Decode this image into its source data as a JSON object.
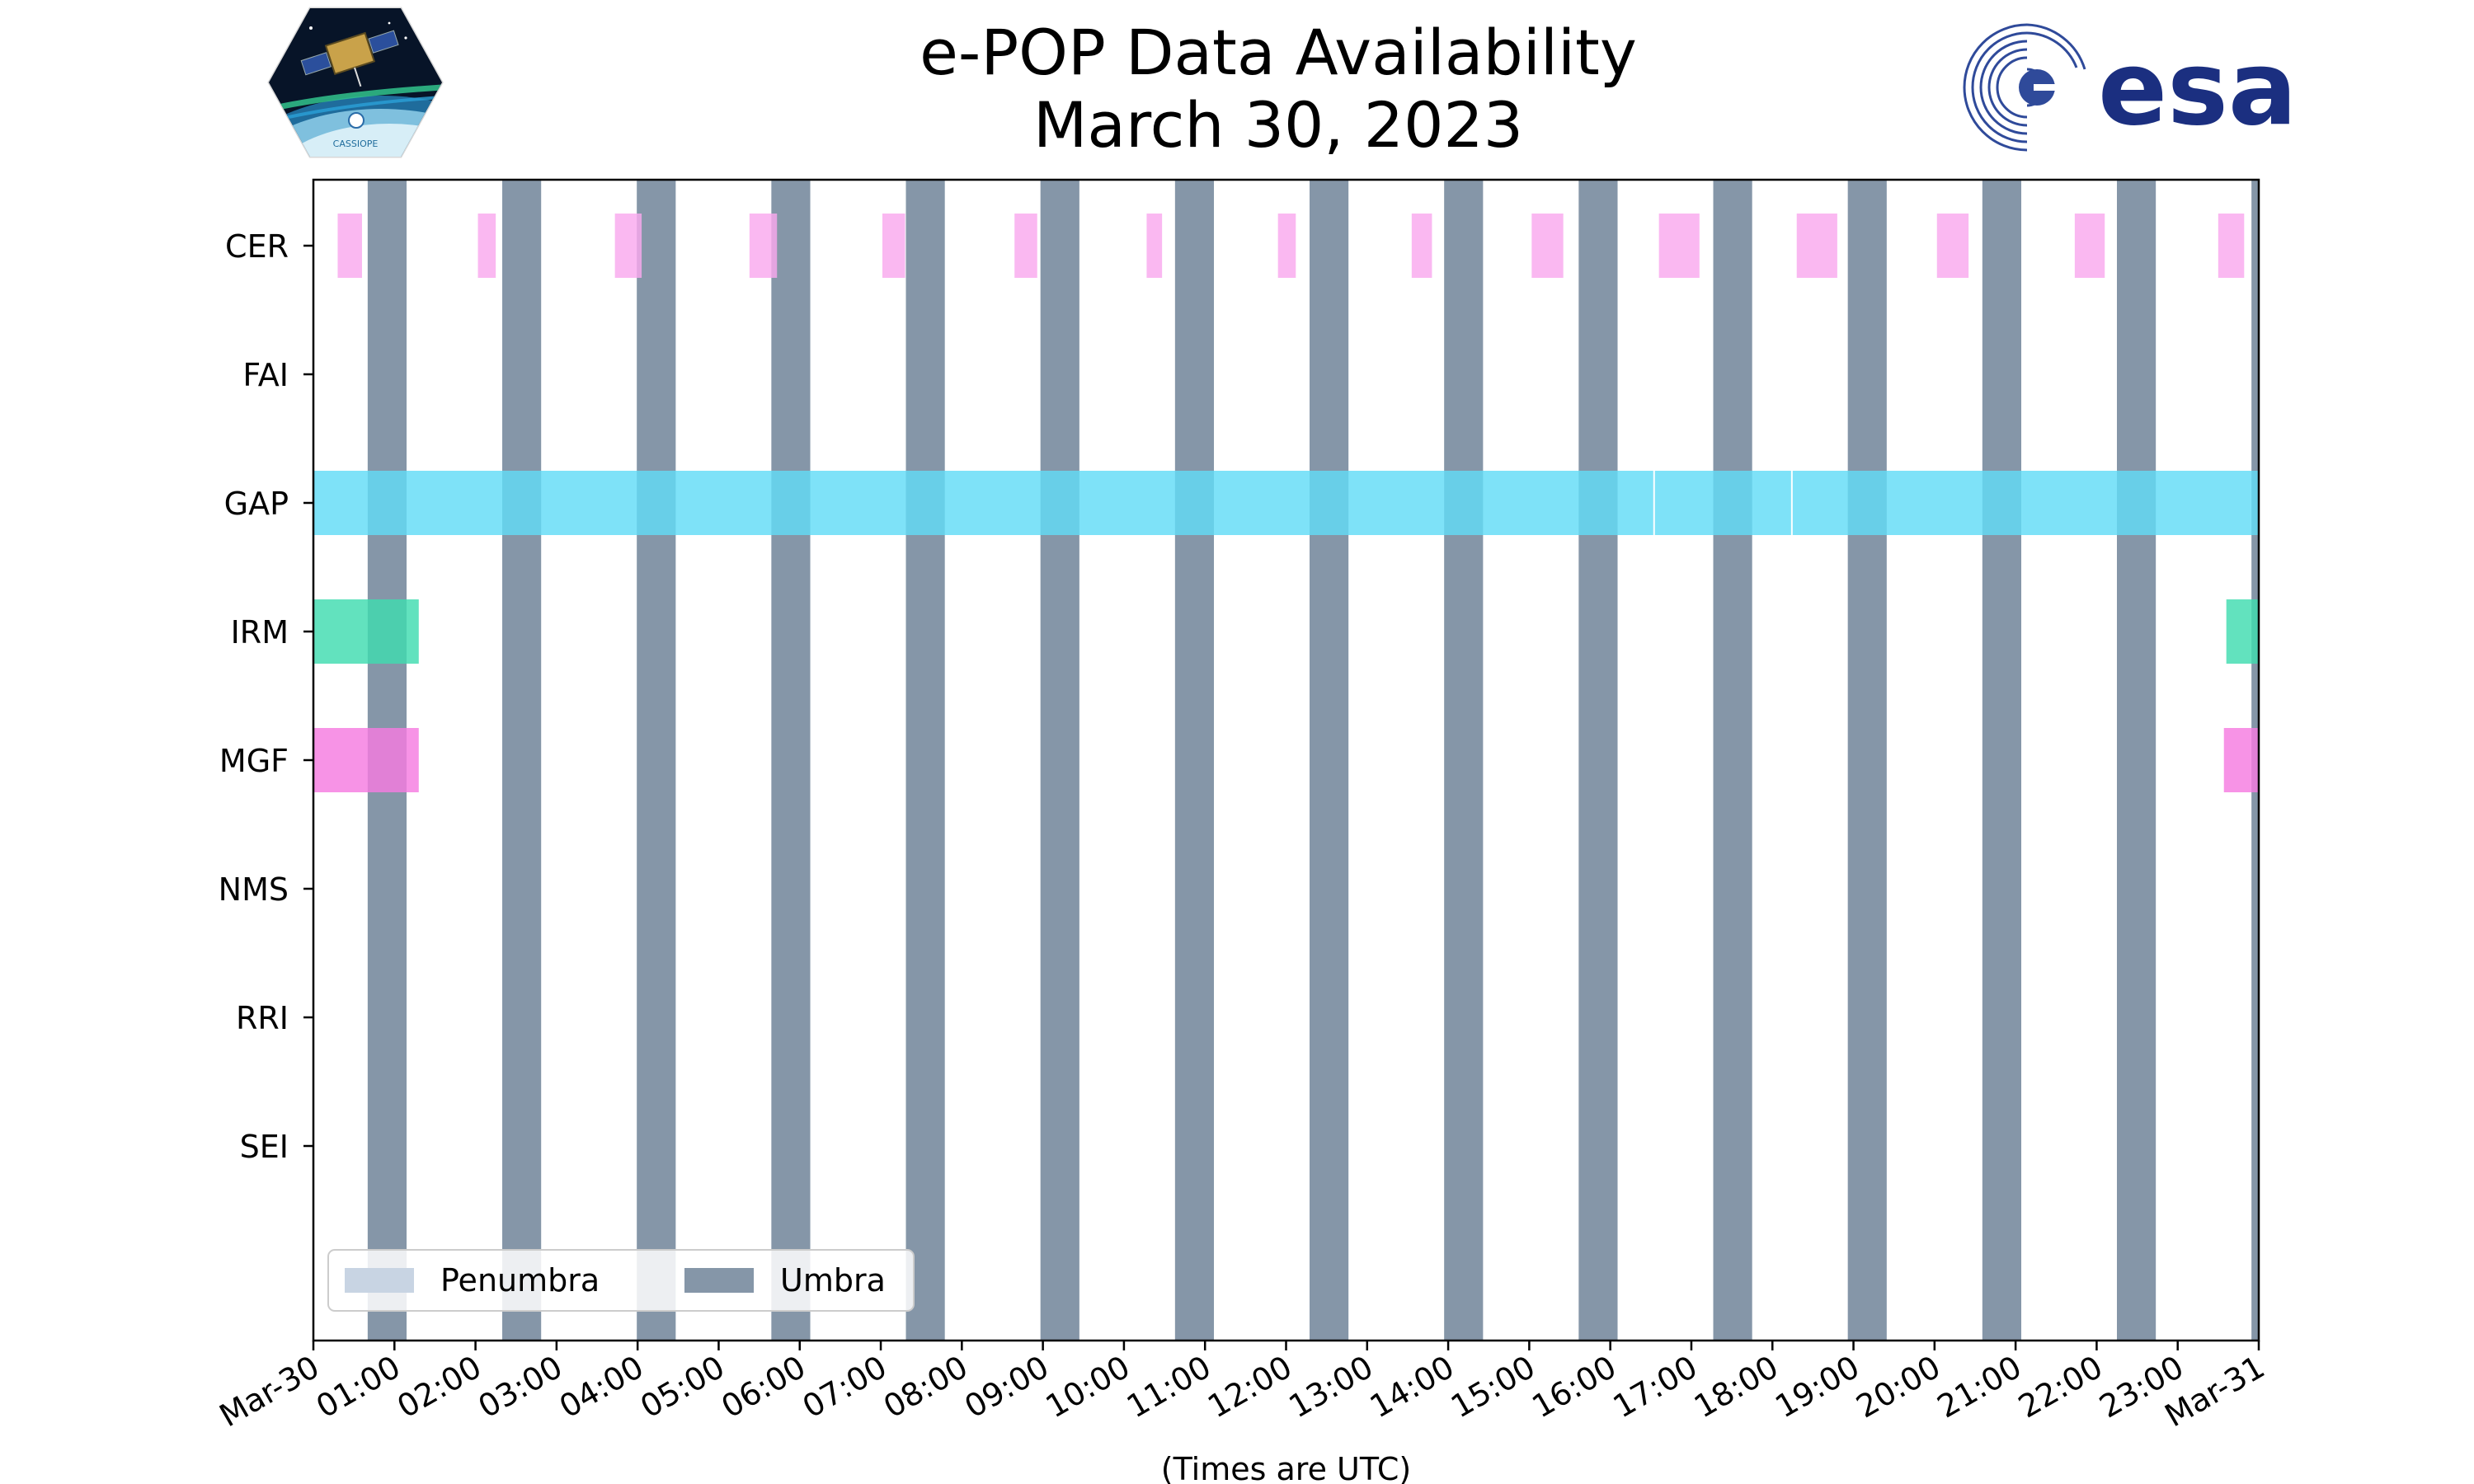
{
  "header": {
    "title_line1": "e-POP Data Availability",
    "title_line2": "March 30, 2023",
    "logo_left_text": "CASSIOPE",
    "logo_right_text": "esa"
  },
  "chart_data": {
    "type": "timeline",
    "title": "e-POP Data Availability\nMarch 30, 2023",
    "xlabel": "(Times are UTC)",
    "x_unit": "hours UTC",
    "xlim": [
      0,
      24
    ],
    "x_tick_labels": [
      "Mar-30",
      "01:00",
      "02:00",
      "03:00",
      "04:00",
      "05:00",
      "06:00",
      "07:00",
      "08:00",
      "09:00",
      "10:00",
      "11:00",
      "12:00",
      "13:00",
      "14:00",
      "15:00",
      "16:00",
      "17:00",
      "18:00",
      "19:00",
      "20:00",
      "21:00",
      "22:00",
      "23:00",
      "Mar-31"
    ],
    "instruments": [
      "CER",
      "FAI",
      "GAP",
      "IRM",
      "MGF",
      "NMS",
      "RRI",
      "SEI"
    ],
    "legend": {
      "placement": "lower-left",
      "entries": [
        {
          "name": "Penumbra",
          "color": "#c8d4e3"
        },
        {
          "name": "Umbra",
          "color": "#8596a8"
        }
      ]
    },
    "umbra_intervals": [
      [
        0.67,
        1.15
      ],
      [
        2.33,
        2.81
      ],
      [
        3.99,
        4.47
      ],
      [
        5.65,
        6.13
      ],
      [
        7.31,
        7.79
      ],
      [
        8.97,
        9.45
      ],
      [
        10.63,
        11.11
      ],
      [
        12.29,
        12.77
      ],
      [
        13.95,
        14.43
      ],
      [
        15.61,
        16.09
      ],
      [
        17.27,
        17.75
      ],
      [
        18.93,
        19.41
      ],
      [
        20.59,
        21.07
      ],
      [
        22.25,
        22.73
      ],
      [
        23.91,
        24.0
      ]
    ],
    "series": [
      {
        "instrument": "CER",
        "color": "#f9a8ee",
        "intervals": [
          [
            0.3,
            0.6
          ],
          [
            2.03,
            2.25
          ],
          [
            3.72,
            4.05
          ],
          [
            5.38,
            5.72
          ],
          [
            7.02,
            7.3
          ],
          [
            8.65,
            8.93
          ],
          [
            10.28,
            10.47
          ],
          [
            11.9,
            12.12
          ],
          [
            13.55,
            13.8
          ],
          [
            15.03,
            15.42
          ],
          [
            16.6,
            17.1
          ],
          [
            18.3,
            18.8
          ],
          [
            20.03,
            20.42
          ],
          [
            21.73,
            22.1
          ],
          [
            23.5,
            23.82
          ]
        ]
      },
      {
        "instrument": "FAI",
        "color": "#f9a8ee",
        "intervals": []
      },
      {
        "instrument": "GAP",
        "color": "#62dcf7",
        "intervals": [
          [
            0.0,
            16.53
          ],
          [
            16.55,
            18.23
          ],
          [
            18.25,
            24.0
          ]
        ]
      },
      {
        "instrument": "IRM",
        "color": "#40dcb0",
        "intervals": [
          [
            0.0,
            1.3
          ],
          [
            23.6,
            24.0
          ]
        ]
      },
      {
        "instrument": "MGF",
        "color": "#f57be0",
        "intervals": [
          [
            0.0,
            1.3
          ],
          [
            23.57,
            24.0
          ]
        ]
      },
      {
        "instrument": "NMS",
        "color": "#62dcf7",
        "intervals": []
      },
      {
        "instrument": "RRI",
        "color": "#62dcf7",
        "intervals": []
      },
      {
        "instrument": "SEI",
        "color": "#62dcf7",
        "intervals": []
      }
    ]
  }
}
